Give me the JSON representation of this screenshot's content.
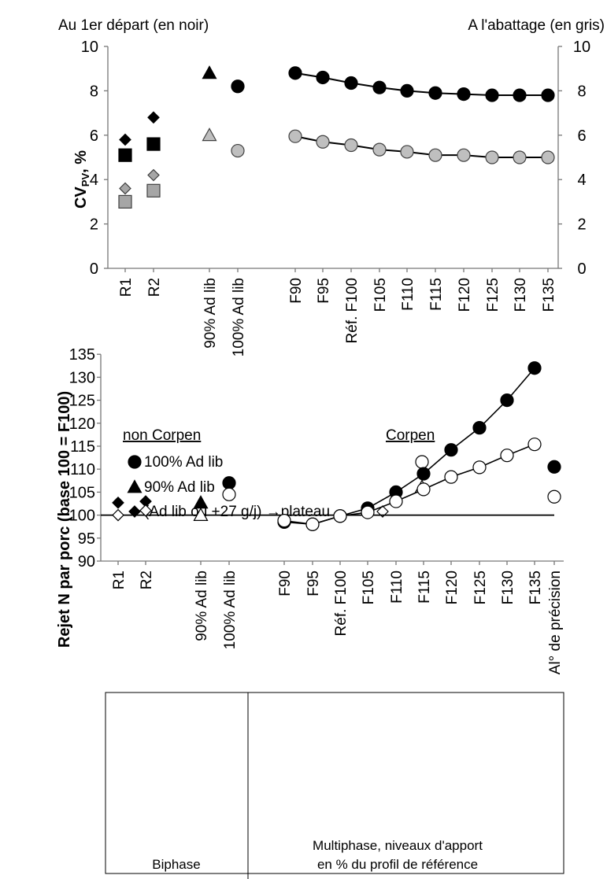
{
  "chart_data": [
    {
      "type": "scatter",
      "header_left": "Au 1er départ (en noir)",
      "header_right": "A l'abattage (en gris)",
      "ylabel_main": "CV",
      "ylabel_sub": "PV",
      "ylabel_tail": ", %",
      "ylim": [
        0,
        10
      ],
      "yticks": [
        "0",
        "2",
        "4",
        "6",
        "8",
        "10"
      ],
      "categories": [
        "R1",
        "R2",
        "90% Ad lib",
        "100% Ad lib",
        "F90",
        "F95",
        "Réf. F100",
        "F105",
        "F110",
        "F115",
        "F120",
        "F125",
        "F130",
        "F135"
      ],
      "series": [
        {
          "key": "dep_diamond",
          "marker": "diamond",
          "color": "#000000",
          "x": [
            "R1",
            "R2"
          ],
          "values": [
            5.8,
            6.8
          ]
        },
        {
          "key": "dep_square",
          "marker": "square",
          "color": "#000000",
          "x": [
            "R1",
            "R2"
          ],
          "values": [
            5.1,
            5.6
          ]
        },
        {
          "key": "aba_diamond",
          "marker": "diamond",
          "color": "#a6a6a6",
          "x": [
            "R1",
            "R2"
          ],
          "values": [
            3.6,
            4.2
          ]
        },
        {
          "key": "aba_square",
          "marker": "square",
          "color": "#a6a6a6",
          "x": [
            "R1",
            "R2"
          ],
          "values": [
            3.0,
            3.5
          ]
        },
        {
          "key": "dep_triangle",
          "marker": "triangle",
          "color": "#000000",
          "x": [
            "90% Ad lib"
          ],
          "values": [
            8.8
          ]
        },
        {
          "key": "aba_triangle",
          "marker": "triangle",
          "color": "#bfbfbf",
          "x": [
            "90% Ad lib"
          ],
          "values": [
            6.0
          ]
        },
        {
          "key": "dep_circle",
          "marker": "circle",
          "color": "#000000",
          "x": [
            "100% Ad lib"
          ],
          "values": [
            8.2
          ]
        },
        {
          "key": "aba_circle",
          "marker": "circle",
          "color": "#bfbfbf",
          "x": [
            "100% Ad lib"
          ],
          "values": [
            5.3
          ]
        },
        {
          "key": "dep_line",
          "marker": "circle-line",
          "color": "#000000",
          "x": [
            "F90",
            "F95",
            "Réf. F100",
            "F105",
            "F110",
            "F115",
            "F120",
            "F125",
            "F130",
            "F135"
          ],
          "values": [
            8.8,
            8.6,
            8.35,
            8.15,
            8.0,
            7.9,
            7.85,
            7.8,
            7.8,
            7.8
          ]
        },
        {
          "key": "aba_line",
          "marker": "circle-line",
          "color": "#bfbfbf",
          "x": [
            "F90",
            "F95",
            "Réf. F100",
            "F105",
            "F110",
            "F115",
            "F120",
            "F125",
            "F130",
            "F135"
          ],
          "values": [
            5.95,
            5.7,
            5.55,
            5.35,
            5.25,
            5.1,
            5.1,
            5.0,
            5.0,
            5.0
          ]
        }
      ]
    },
    {
      "type": "scatter",
      "ylabel": "Rejet N par porc (base 100 = F100)",
      "ylim": [
        90,
        135
      ],
      "yticks": [
        "90",
        "95",
        "100",
        "105",
        "110",
        "115",
        "120",
        "125",
        "130",
        "135"
      ],
      "categories": [
        "R1",
        "R2",
        "90% Ad lib",
        "100% Ad lib",
        "F90",
        "F95",
        "Réf. F100",
        "F105",
        "F110",
        "F115",
        "F120",
        "F125",
        "F130",
        "F135",
        "Al° de précision"
      ],
      "legend": {
        "col_left": "non Corpen",
        "col_right": "Corpen",
        "entries": [
          "100% Ad lib",
          "90% Ad lib",
          "(Ad lib ou +27 g/j) →plateau"
        ]
      },
      "series": [
        {
          "key": "nc_diamond",
          "marker": "diamond",
          "fill": "black",
          "x": [
            "R1",
            "R2"
          ],
          "values": [
            102.7,
            103.0
          ]
        },
        {
          "key": "c_diamond",
          "marker": "diamond",
          "fill": "white",
          "x": [
            "R1",
            "R2"
          ],
          "values": [
            100.0,
            101.0
          ]
        },
        {
          "key": "nc_triangle",
          "marker": "triangle",
          "fill": "black",
          "x": [
            "90% Ad lib"
          ],
          "values": [
            102.7
          ]
        },
        {
          "key": "c_triangle",
          "marker": "triangle",
          "fill": "white",
          "x": [
            "90% Ad lib"
          ],
          "values": [
            100.0
          ]
        },
        {
          "key": "nc_circle",
          "marker": "circle",
          "fill": "black",
          "x": [
            "100% Ad lib",
            "Al° de précision"
          ],
          "values": [
            107.0,
            110.5
          ]
        },
        {
          "key": "c_circle",
          "marker": "circle",
          "fill": "white",
          "x": [
            "100% Ad lib",
            "Al° de précision"
          ],
          "values": [
            104.5,
            104.0
          ]
        },
        {
          "key": "nc_line",
          "marker": "circle-line",
          "fill": "black",
          "x": [
            "F90",
            "F95",
            "Réf. F100",
            "F105",
            "F110",
            "F115",
            "F120",
            "F125",
            "F130",
            "F135"
          ],
          "values": [
            98.5,
            98.0,
            99.8,
            101.5,
            105.0,
            109.0,
            114.2,
            119.0,
            125.0,
            132.0
          ]
        },
        {
          "key": "c_line",
          "marker": "circle-line",
          "fill": "white",
          "x": [
            "F90",
            "F95",
            "Réf. F100",
            "F105",
            "F110",
            "F115",
            "F120",
            "F125",
            "F130",
            "F135"
          ],
          "values": [
            98.8,
            98.0,
            99.8,
            100.6,
            103.0,
            105.6,
            108.3,
            110.4,
            113.0,
            115.4
          ]
        }
      ],
      "reference_line": 100,
      "groups": [
        "Biphase",
        "Multiphase, niveaux d'apport en % du profil de référence"
      ]
    }
  ]
}
